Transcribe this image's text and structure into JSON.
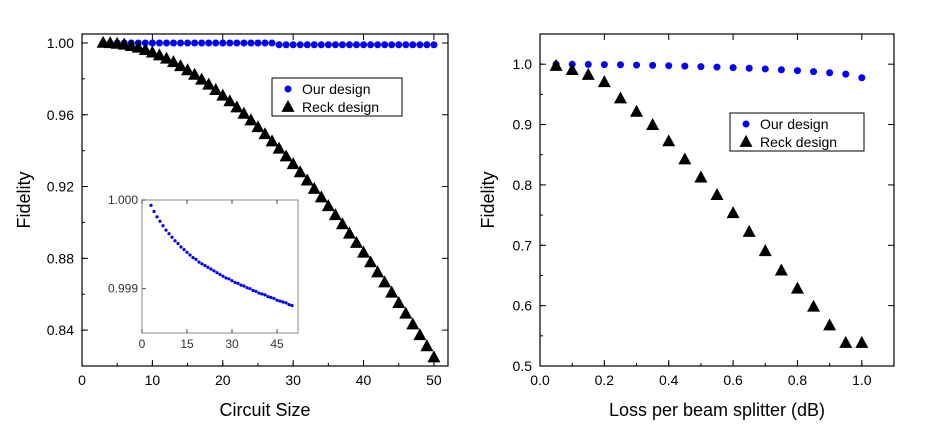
{
  "chart_data": [
    {
      "type": "scatter",
      "xlabel": "Circuit Size",
      "ylabel": "Fidelity",
      "xlim": [
        0,
        52
      ],
      "ylim": [
        0.82,
        1.005
      ],
      "xticks": [
        "0",
        "10",
        "20",
        "30",
        "40",
        "50"
      ],
      "yticks": [
        "0.84",
        "0.88",
        "0.92",
        "0.96",
        "1.00"
      ],
      "legend_placement": "top-right",
      "series": [
        {
          "name": "Our design",
          "color": "#0000ff",
          "marker": "circle",
          "x": [
            3,
            4,
            5,
            6,
            7,
            8,
            9,
            10,
            11,
            12,
            13,
            14,
            15,
            16,
            17,
            18,
            19,
            20,
            21,
            22,
            23,
            24,
            25,
            26,
            27,
            28,
            29,
            30,
            31,
            32,
            33,
            34,
            35,
            36,
            37,
            38,
            39,
            40,
            41,
            42,
            43,
            44,
            45,
            46,
            47,
            48,
            49,
            50
          ],
          "y": [
            1.0,
            1.0,
            1.0,
            1.0,
            1.0,
            1.0,
            1.0,
            1.0,
            1.0,
            1.0,
            1.0,
            1.0,
            1.0,
            1.0,
            1.0,
            1.0,
            1.0,
            1.0,
            1.0,
            1.0,
            1.0,
            1.0,
            1.0,
            1.0,
            1.0,
            0.999,
            0.999,
            0.999,
            0.999,
            0.999,
            0.999,
            0.999,
            0.999,
            0.999,
            0.999,
            0.999,
            0.999,
            0.999,
            0.999,
            0.999,
            0.999,
            0.999,
            0.999,
            0.999,
            0.999,
            0.999,
            0.999,
            0.999
          ]
        },
        {
          "name": "Reck design",
          "color": "#000000",
          "marker": "triangle",
          "x": [
            3,
            4,
            5,
            6,
            7,
            8,
            9,
            10,
            11,
            12,
            13,
            14,
            15,
            16,
            17,
            18,
            19,
            20,
            21,
            22,
            23,
            24,
            25,
            26,
            27,
            28,
            29,
            30,
            31,
            32,
            33,
            34,
            35,
            36,
            37,
            38,
            39,
            40,
            41,
            42,
            43,
            44,
            45,
            46,
            47,
            48,
            49,
            50
          ],
          "y": [
            1.0,
            0.9998,
            0.9995,
            0.999,
            0.9982,
            0.9973,
            0.996,
            0.9946,
            0.993,
            0.9912,
            0.9892,
            0.987,
            0.9847,
            0.9822,
            0.9795,
            0.9767,
            0.9737,
            0.9706,
            0.9674,
            0.964,
            0.9605,
            0.9568,
            0.953,
            0.9491,
            0.9451,
            0.941,
            0.9367,
            0.9324,
            0.9279,
            0.9233,
            0.9186,
            0.9139,
            0.909,
            0.904,
            0.8989,
            0.8937,
            0.8885,
            0.8831,
            0.8777,
            0.8721,
            0.8665,
            0.8608,
            0.855,
            0.8491,
            0.8431,
            0.8371,
            0.8309,
            0.8247
          ]
        }
      ],
      "inset": {
        "type": "scatter",
        "xlim": [
          0,
          52
        ],
        "ylim": [
          0.9985,
          1.0
        ],
        "xticks": [
          "0",
          "15",
          "30",
          "45"
        ],
        "yticks": [
          "0.999",
          "1.000"
        ],
        "series": [
          {
            "name": "Our design",
            "color": "#0000ff",
            "x": [
              3,
              4,
              5,
              6,
              7,
              8,
              9,
              10,
              11,
              12,
              13,
              14,
              15,
              16,
              17,
              18,
              19,
              20,
              21,
              22,
              23,
              24,
              25,
              26,
              27,
              28,
              29,
              30,
              31,
              32,
              33,
              34,
              35,
              36,
              37,
              38,
              39,
              40,
              41,
              42,
              43,
              44,
              45,
              46,
              47,
              48,
              49,
              50
            ],
            "y": [
              0.99994,
              0.99987,
              0.99981,
              0.99976,
              0.99971,
              0.99966,
              0.99962,
              0.99958,
              0.99954,
              0.99951,
              0.99947,
              0.99944,
              0.99941,
              0.99938,
              0.99935,
              0.99933,
              0.9993,
              0.99928,
              0.99926,
              0.99924,
              0.99922,
              0.9992,
              0.99918,
              0.99916,
              0.99914,
              0.99912,
              0.99911,
              0.99909,
              0.99907,
              0.99906,
              0.99904,
              0.99903,
              0.99901,
              0.999,
              0.99898,
              0.99897,
              0.99895,
              0.99894,
              0.99893,
              0.99891,
              0.9989,
              0.99889,
              0.99887,
              0.99886,
              0.99885,
              0.99884,
              0.99882,
              0.99881
            ]
          }
        ]
      }
    },
    {
      "type": "scatter",
      "xlabel": "Loss per beam splitter (dB)",
      "ylabel": "Fidelity",
      "xlim": [
        0,
        1.1
      ],
      "ylim": [
        0.5,
        1.05
      ],
      "xticks": [
        "0.0",
        "0.2",
        "0.4",
        "0.6",
        "0.8",
        "1.0"
      ],
      "yticks": [
        "0.5",
        "0.6",
        "0.7",
        "0.8",
        "0.9",
        "1.0"
      ],
      "legend_placement": "top-right",
      "series": [
        {
          "name": "Our design",
          "color": "#0000ff",
          "marker": "circle",
          "x": [
            0.05,
            0.1,
            0.15,
            0.2,
            0.25,
            0.3,
            0.35,
            0.4,
            0.45,
            0.5,
            0.55,
            0.6,
            0.65,
            0.7,
            0.75,
            0.8,
            0.85,
            0.9,
            0.95,
            1.0
          ],
          "y": [
            1.0,
            0.9998,
            0.9996,
            0.9993,
            0.999,
            0.9985,
            0.998,
            0.9975,
            0.9968,
            0.996,
            0.9952,
            0.9943,
            0.9932,
            0.9921,
            0.9908,
            0.9893,
            0.9877,
            0.9858,
            0.9835,
            0.9775
          ]
        },
        {
          "name": "Reck design",
          "color": "#000000",
          "marker": "triangle",
          "x": [
            0.05,
            0.1,
            0.15,
            0.2,
            0.25,
            0.3,
            0.35,
            0.4,
            0.45,
            0.5,
            0.55,
            0.6,
            0.65,
            0.7,
            0.75,
            0.8,
            0.85,
            0.9,
            0.95,
            1.0
          ],
          "y": [
            0.997,
            0.99,
            0.982,
            0.97,
            0.943,
            0.921,
            0.899,
            0.872,
            0.842,
            0.812,
            0.783,
            0.753,
            0.722,
            0.69,
            0.658,
            0.628,
            0.598,
            0.567,
            0.538,
            0.538
          ]
        }
      ]
    }
  ]
}
